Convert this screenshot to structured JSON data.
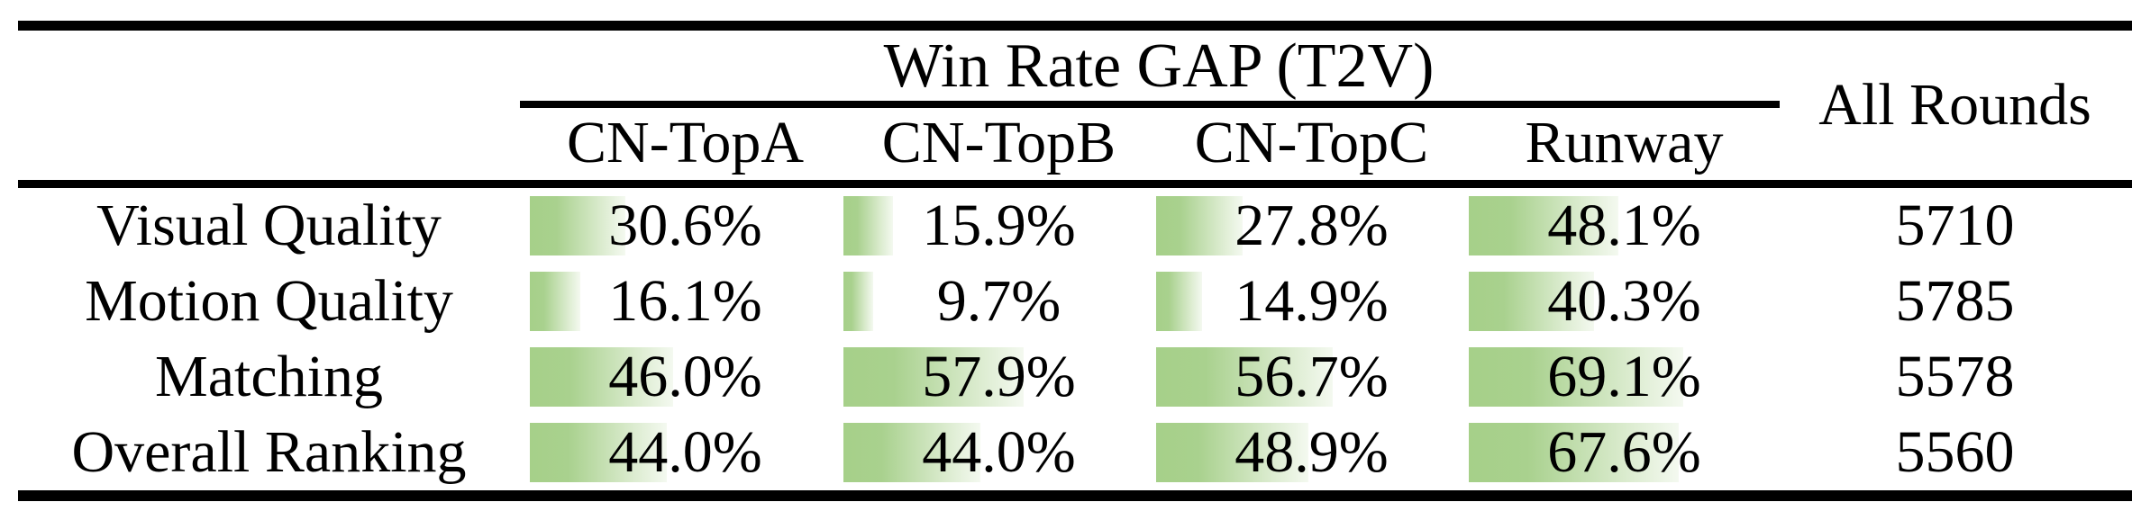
{
  "figure": {
    "title": "Win Rate GAP (T2V)",
    "all_rounds_header": "All Rounds",
    "columns": [
      "CN-TopA",
      "CN-TopB",
      "CN-TopC",
      "Runway"
    ],
    "rows": [
      {
        "label": "Visual Quality",
        "values": [
          "30.6%",
          "15.9%",
          "27.8%",
          "48.1%"
        ],
        "percents": [
          30.6,
          15.9,
          27.8,
          48.1
        ],
        "all_rounds": "5710"
      },
      {
        "label": "Motion Quality",
        "values": [
          "16.1%",
          "9.7%",
          "14.9%",
          "40.3%"
        ],
        "percents": [
          16.1,
          9.7,
          14.9,
          40.3
        ],
        "all_rounds": "5785"
      },
      {
        "label": "Matching",
        "values": [
          "46.0%",
          "57.9%",
          "56.7%",
          "69.1%"
        ],
        "percents": [
          46.0,
          57.9,
          56.7,
          69.1
        ],
        "all_rounds": "5578"
      },
      {
        "label": "Overall Ranking",
        "values": [
          "44.0%",
          "44.0%",
          "48.9%",
          "67.6%"
        ],
        "percents": [
          44.0,
          44.0,
          48.9,
          67.6
        ],
        "all_rounds": "5560"
      }
    ],
    "colors": {
      "bar_green": "#a9d18e",
      "bar_fade": "#f4f9f0",
      "rule_black": "#000000",
      "text": "#000000"
    }
  },
  "chart_data": {
    "type": "table",
    "title": "Win Rate GAP (T2V)",
    "columns": [
      "CN-TopA",
      "CN-TopB",
      "CN-TopC",
      "Runway",
      "All Rounds"
    ],
    "categories": [
      "Visual Quality",
      "Motion Quality",
      "Matching",
      "Overall Ranking"
    ],
    "series": [
      {
        "name": "CN-TopA",
        "values": [
          30.6,
          16.1,
          46.0,
          44.0
        ],
        "unit": "%"
      },
      {
        "name": "CN-TopB",
        "values": [
          15.9,
          9.7,
          57.9,
          44.0
        ],
        "unit": "%"
      },
      {
        "name": "CN-TopC",
        "values": [
          27.8,
          14.9,
          56.7,
          48.9
        ],
        "unit": "%"
      },
      {
        "name": "Runway",
        "values": [
          48.1,
          40.3,
          69.1,
          67.6
        ],
        "unit": "%"
      },
      {
        "name": "All Rounds",
        "values": [
          5710,
          5785,
          5578,
          5560
        ],
        "unit": "count"
      }
    ],
    "cell_bar_style": "in-cell horizontal bar, width proportional to percent of full cell width (0-100%), green-to-white gradient",
    "value_range_percent": [
      0,
      100
    ],
    "legend_position": "none",
    "grid": false
  }
}
